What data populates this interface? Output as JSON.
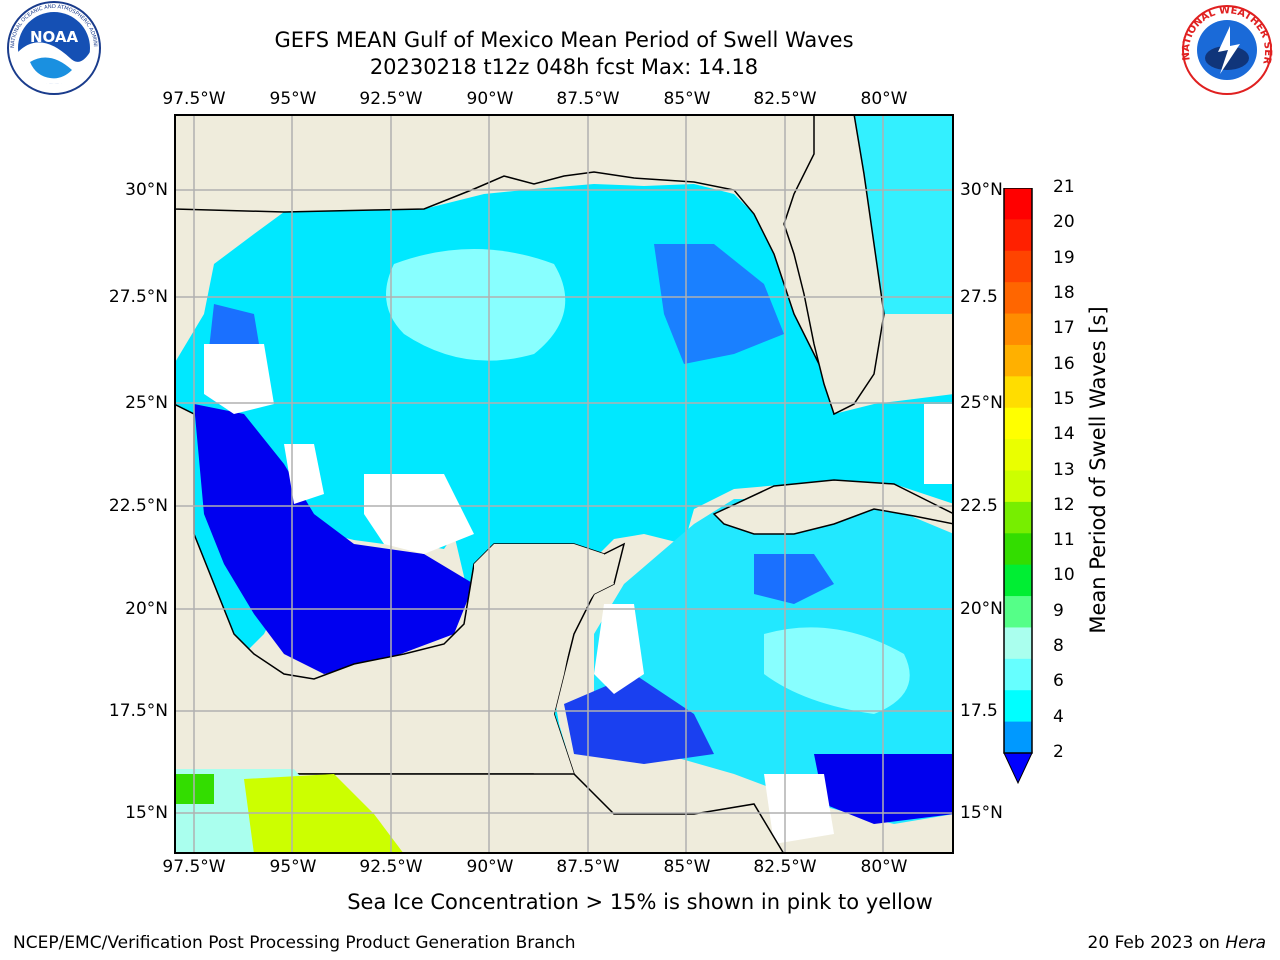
{
  "header": {
    "title_line1": "GEFS MEAN Gulf of Mexico Mean Period of Swell Waves",
    "title_line2": "20230218 t12z 048h fcst   Max: 14.18"
  },
  "map": {
    "lon_labels": [
      "97.5°W",
      "95°W",
      "92.5°W",
      "90°W",
      "87.5°W",
      "85°W",
      "82.5°W",
      "80°W"
    ],
    "lat_labels_left": [
      "30°N",
      "27.5°N",
      "25°N",
      "22.5°N",
      "20°N",
      "17.5°N",
      "15°N"
    ],
    "lat_labels_right": [
      "30°N",
      "27.5",
      "25°N",
      "22.5",
      "20°N",
      "17.5",
      "15°N"
    ],
    "land_color": "#efecdc",
    "grid_color": "#b0b0b0"
  },
  "colorbar": {
    "title": "Mean Period of Swell Waves [s]",
    "ticks": [
      "21",
      "20",
      "19",
      "18",
      "17",
      "16",
      "15",
      "14",
      "13",
      "12",
      "11",
      "10",
      "9",
      "8",
      "6",
      "4",
      "2"
    ],
    "colors": [
      "#ff0000",
      "#ff2000",
      "#ff4400",
      "#ff6600",
      "#ff8c00",
      "#ffb000",
      "#ffdd00",
      "#ffff00",
      "#eaff00",
      "#ccff00",
      "#77ee00",
      "#33dd00",
      "#00ee33",
      "#55ff88",
      "#aaffee",
      "#66ffff",
      "#00ffff",
      "#0099ff",
      "#0000ff"
    ]
  },
  "footer": {
    "note": "Sea Ice Concentration > 15% is shown in pink to yellow",
    "credit": "NCEP/EMC/Verification Post Processing Product Generation Branch",
    "date": "20 Feb 2023 on ",
    "machine": "Hera"
  },
  "logos": {
    "noaa_text": "NOAA",
    "noaa_ring": "NATIONAL OCEANIC AND ATMOSPHERIC ADMINISTRATION",
    "nws_ring": "NATIONAL WEATHER SERVICE"
  }
}
